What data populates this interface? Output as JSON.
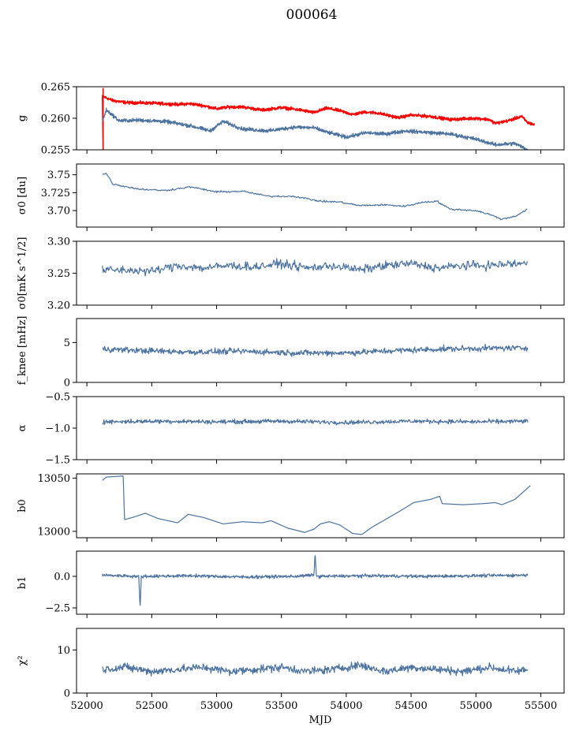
{
  "figure": {
    "title": "000064"
  },
  "chart_data": [
    {
      "type": "line",
      "ylabel": "g",
      "ylim": [
        0.255,
        0.265
      ],
      "yticks": [
        0.255,
        0.26,
        0.265
      ],
      "ytick_labels": [
        "0.255",
        "0.260",
        "0.265"
      ],
      "xlim": [
        51920,
        55680
      ],
      "series": [
        {
          "color": "#ff0000",
          "points": [
            [
              52120,
              0.2635
            ],
            [
              52200,
              0.2628
            ],
            [
              52300,
              0.2625
            ],
            [
              52500,
              0.2624
            ],
            [
              52700,
              0.2622
            ],
            [
              52800,
              0.2623
            ],
            [
              52900,
              0.262
            ],
            [
              53000,
              0.2615
            ],
            [
              53100,
              0.2618
            ],
            [
              53200,
              0.2618
            ],
            [
              53350,
              0.2613
            ],
            [
              53500,
              0.2617
            ],
            [
              53650,
              0.2613
            ],
            [
              53750,
              0.2609
            ],
            [
              53850,
              0.2616
            ],
            [
              53950,
              0.2612
            ],
            [
              54050,
              0.2606
            ],
            [
              54150,
              0.261
            ],
            [
              54250,
              0.2608
            ],
            [
              54400,
              0.2601
            ],
            [
              54500,
              0.2605
            ],
            [
              54650,
              0.2603
            ],
            [
              54800,
              0.2598
            ],
            [
              55000,
              0.26
            ],
            [
              55100,
              0.2598
            ],
            [
              55150,
              0.2592
            ],
            [
              55250,
              0.2596
            ],
            [
              55350,
              0.2603
            ],
            [
              55400,
              0.2593
            ],
            [
              55450,
              0.259
            ]
          ]
        },
        {
          "color": "#4c72a0",
          "points": [
            [
              52120,
              0.2595
            ],
            [
              52150,
              0.2613
            ],
            [
              52250,
              0.2596
            ],
            [
              52400,
              0.2597
            ],
            [
              52600,
              0.2595
            ],
            [
              52800,
              0.2588
            ],
            [
              52950,
              0.258
            ],
            [
              53050,
              0.2595
            ],
            [
              53200,
              0.2583
            ],
            [
              53400,
              0.258
            ],
            [
              53600,
              0.2586
            ],
            [
              53750,
              0.2585
            ],
            [
              53850,
              0.2578
            ],
            [
              54000,
              0.257
            ],
            [
              54150,
              0.2577
            ],
            [
              54300,
              0.2575
            ],
            [
              54450,
              0.258
            ],
            [
              54600,
              0.2578
            ],
            [
              54800,
              0.2575
            ],
            [
              55000,
              0.2567
            ],
            [
              55150,
              0.2558
            ],
            [
              55300,
              0.256
            ],
            [
              55400,
              0.255
            ]
          ]
        }
      ]
    },
    {
      "type": "line",
      "ylabel": "σ0 [du]",
      "ylim": [
        3.677,
        3.765
      ],
      "yticks": [
        3.7,
        3.725,
        3.75
      ],
      "ytick_labels": [
        "3.70",
        "3.725",
        "3.75"
      ],
      "xlim": [
        51920,
        55680
      ],
      "series": [
        {
          "color": "#4c72a0",
          "points": [
            [
              52120,
              3.75
            ],
            [
              52150,
              3.752
            ],
            [
              52200,
              3.737
            ],
            [
              52400,
              3.73
            ],
            [
              52600,
              3.728
            ],
            [
              52800,
              3.733
            ],
            [
              53000,
              3.726
            ],
            [
              53200,
              3.727
            ],
            [
              53400,
              3.72
            ],
            [
              53600,
              3.72
            ],
            [
              53800,
              3.713
            ],
            [
              53950,
              3.712
            ],
            [
              54100,
              3.707
            ],
            [
              54300,
              3.708
            ],
            [
              54450,
              3.706
            ],
            [
              54600,
              3.712
            ],
            [
              54700,
              3.713
            ],
            [
              54800,
              3.702
            ],
            [
              55000,
              3.7
            ],
            [
              55100,
              3.695
            ],
            [
              55200,
              3.688
            ],
            [
              55300,
              3.692
            ],
            [
              55400,
              3.702
            ]
          ]
        }
      ]
    },
    {
      "type": "line",
      "ylabel": "σ0[mK s^1/2]",
      "ylim": [
        3.2,
        3.3
      ],
      "yticks": [
        3.2,
        3.25,
        3.3
      ],
      "ytick_labels": [
        "3.20",
        "3.25",
        "3.30"
      ],
      "xlim": [
        51920,
        55680
      ],
      "series": [
        {
          "color": "#4c72a0",
          "points": [
            [
              52120,
              3.255
            ],
            [
              52300,
              3.255
            ],
            [
              52500,
              3.253
            ],
            [
              52700,
              3.262
            ],
            [
              52900,
              3.258
            ],
            [
              53100,
              3.262
            ],
            [
              53300,
              3.26
            ],
            [
              53500,
              3.265
            ],
            [
              53700,
              3.258
            ],
            [
              53900,
              3.262
            ],
            [
              54100,
              3.255
            ],
            [
              54300,
              3.262
            ],
            [
              54500,
              3.265
            ],
            [
              54700,
              3.258
            ],
            [
              54900,
              3.262
            ],
            [
              55100,
              3.262
            ],
            [
              55300,
              3.265
            ],
            [
              55400,
              3.265
            ]
          ]
        }
      ]
    },
    {
      "type": "line",
      "ylabel": "f_knee [mHz]",
      "ylim": [
        0,
        8
      ],
      "yticks": [
        0,
        5
      ],
      "ytick_labels": [
        "0",
        "5"
      ],
      "xlim": [
        51920,
        55680
      ],
      "series": [
        {
          "color": "#4c72a0",
          "points": [
            [
              52120,
              4.2
            ],
            [
              52400,
              4.0
            ],
            [
              52800,
              3.8
            ],
            [
              53200,
              3.9
            ],
            [
              53600,
              3.7
            ],
            [
              54000,
              3.7
            ],
            [
              54400,
              4.0
            ],
            [
              54800,
              4.2
            ],
            [
              55200,
              4.3
            ],
            [
              55400,
              4.3
            ]
          ]
        }
      ]
    },
    {
      "type": "line",
      "ylabel": "α",
      "ylim": [
        -1.5,
        -0.5
      ],
      "yticks": [
        -1.5,
        -1.0,
        -0.5
      ],
      "ytick_labels": [
        "−1.5",
        "−1.0",
        "−0.5"
      ],
      "xlim": [
        51920,
        55680
      ],
      "series": [
        {
          "color": "#4c72a0",
          "points": [
            [
              52120,
              -0.9
            ],
            [
              52600,
              -0.89
            ],
            [
              53000,
              -0.9
            ],
            [
              53500,
              -0.89
            ],
            [
              54000,
              -0.91
            ],
            [
              54500,
              -0.89
            ],
            [
              55000,
              -0.9
            ],
            [
              55400,
              -0.89
            ]
          ]
        }
      ]
    },
    {
      "type": "line",
      "ylabel": "b0",
      "ylim": [
        12994,
        13054
      ],
      "yticks": [
        13000,
        13050
      ],
      "ytick_labels": [
        "13000",
        "13050"
      ],
      "xlim": [
        51920,
        55680
      ],
      "series": [
        {
          "color": "#4c72a0",
          "points": [
            [
              52120,
              13048
            ],
            [
              52150,
              13051
            ],
            [
              52280,
              13052
            ],
            [
              52290,
              13011
            ],
            [
              52350,
              13013
            ],
            [
              52450,
              13017
            ],
            [
              52550,
              13012
            ],
            [
              52700,
              13008
            ],
            [
              52780,
              13016
            ],
            [
              52900,
              13013
            ],
            [
              53050,
              13007
            ],
            [
              53200,
              13009
            ],
            [
              53350,
              13008
            ],
            [
              53420,
              13010
            ],
            [
              53550,
              13003
            ],
            [
              53680,
              12999
            ],
            [
              53750,
              13002
            ],
            [
              53800,
              13007
            ],
            [
              53870,
              13009
            ],
            [
              53950,
              13006
            ],
            [
              54050,
              12998
            ],
            [
              54120,
              12997
            ],
            [
              54200,
              13004
            ],
            [
              54400,
              13018
            ],
            [
              54520,
              13027
            ],
            [
              54650,
              13030
            ],
            [
              54720,
              13033
            ],
            [
              54740,
              13026
            ],
            [
              54900,
              13025
            ],
            [
              55050,
              13026
            ],
            [
              55150,
              13027
            ],
            [
              55200,
              13025
            ],
            [
              55300,
              13030
            ],
            [
              55420,
              13043
            ]
          ]
        }
      ]
    },
    {
      "type": "line",
      "ylabel": "b1",
      "ylim": [
        -3.0,
        2.0
      ],
      "yticks": [
        -2.5,
        0.0
      ],
      "ytick_labels": [
        "−2.5",
        "0.0"
      ],
      "xlim": [
        51920,
        55680
      ],
      "series": [
        {
          "color": "#4c72a0",
          "points": [
            [
              52120,
              0.1
            ],
            [
              52400,
              0.0
            ],
            [
              52410,
              -2.6
            ],
            [
              52420,
              0.0
            ],
            [
              52800,
              0.05
            ],
            [
              53200,
              -0.05
            ],
            [
              53600,
              0.0
            ],
            [
              53750,
              0.1
            ],
            [
              53760,
              1.8
            ],
            [
              53770,
              0.0
            ],
            [
              54200,
              0.05
            ],
            [
              54600,
              0.0
            ],
            [
              55000,
              0.05
            ],
            [
              55400,
              0.1
            ]
          ]
        }
      ]
    },
    {
      "type": "line",
      "ylabel": "χ²",
      "ylim": [
        0,
        15
      ],
      "yticks": [
        0,
        10
      ],
      "ytick_labels": [
        "0",
        "10"
      ],
      "xtick_values": [
        52000,
        52500,
        53000,
        53500,
        54000,
        54500,
        55000,
        55500
      ],
      "xtick_labels": [
        "52000",
        "52500",
        "53000",
        "53500",
        "54000",
        "54500",
        "55000",
        "55500"
      ],
      "xlabel": "MJD",
      "xlim": [
        51920,
        55680
      ],
      "series": [
        {
          "color": "#4c72a0",
          "points": [
            [
              52120,
              5.5
            ],
            [
              52300,
              6.0
            ],
            [
              52500,
              5.0
            ],
            [
              52700,
              5.5
            ],
            [
              52900,
              6.0
            ],
            [
              53100,
              5.0
            ],
            [
              53300,
              5.5
            ],
            [
              53500,
              6.0
            ],
            [
              53700,
              5.0
            ],
            [
              53900,
              5.5
            ],
            [
              54100,
              6.5
            ],
            [
              54300,
              5.0
            ],
            [
              54500,
              6.0
            ],
            [
              54700,
              5.5
            ],
            [
              54900,
              5.0
            ],
            [
              55100,
              6.0
            ],
            [
              55300,
              5.0
            ],
            [
              55400,
              5.5
            ]
          ]
        }
      ]
    }
  ]
}
